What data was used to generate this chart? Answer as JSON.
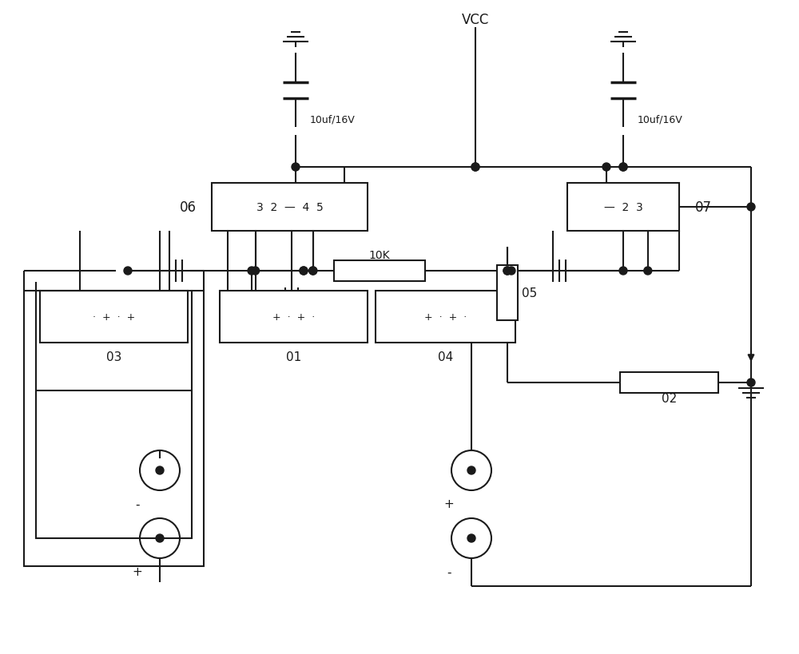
{
  "bg": "#ffffff",
  "lc": "#1a1a1a",
  "lw": 1.5,
  "vcc_text": "VCC",
  "cap1_text": "10uf/16V",
  "cap2_text": "10uf/16V",
  "res10k_text": "10K",
  "res05_text": "05",
  "res02_text": "02",
  "ic06_text": "06",
  "ic06_pins": "3  2  —  4  5",
  "ic07_text": "07",
  "ic07_pins": "—  2  3",
  "b03_text": "03",
  "b01_text": "01",
  "b04_text": "04",
  "b03_pins": "·  +  ·  +",
  "b01_pins": "+  ·  +  ·",
  "b04_pins": "+  ·  +  ·"
}
